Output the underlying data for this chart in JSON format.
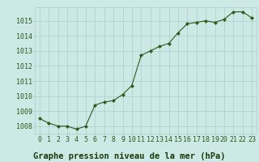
{
  "x": [
    0,
    1,
    2,
    3,
    4,
    5,
    6,
    7,
    8,
    9,
    10,
    11,
    12,
    13,
    14,
    15,
    16,
    17,
    18,
    19,
    20,
    21,
    22,
    23
  ],
  "y": [
    1008.5,
    1008.2,
    1008.0,
    1008.0,
    1007.8,
    1008.0,
    1009.4,
    1009.6,
    1009.7,
    1010.1,
    1010.7,
    1012.7,
    1013.0,
    1013.3,
    1013.5,
    1014.2,
    1014.8,
    1014.9,
    1015.0,
    1014.9,
    1015.1,
    1015.6,
    1015.6,
    1015.2
  ],
  "line_color": "#2d5a1b",
  "marker": "D",
  "marker_size": 2.2,
  "bg_color": "#cce9e5",
  "grid_color": "#aacfcc",
  "xlabel": "Graphe pression niveau de la mer (hPa)",
  "xlabel_color": "#1a3a0a",
  "xlabel_fontsize": 7.5,
  "ylabel_ticks": [
    1008,
    1009,
    1010,
    1011,
    1012,
    1013,
    1014,
    1015
  ],
  "ylim": [
    1007.5,
    1015.9
  ],
  "xlim": [
    -0.5,
    23.5
  ],
  "tick_color": "#2d5a1b",
  "tick_fontsize": 6.0
}
